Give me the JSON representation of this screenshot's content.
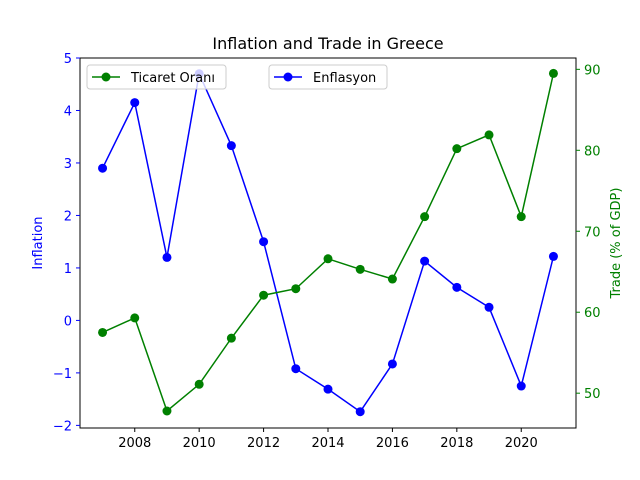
{
  "chart_data": {
    "type": "line",
    "title": "Inflation and Trade in Greece",
    "x": [
      2007,
      2008,
      2009,
      2010,
      2011,
      2012,
      2013,
      2014,
      2015,
      2016,
      2017,
      2018,
      2019,
      2020,
      2021
    ],
    "x_ticks": [
      2008,
      2010,
      2012,
      2014,
      2016,
      2018,
      2020
    ],
    "xlim": [
      2006.3,
      2021.7
    ],
    "left_axis": {
      "label": "Inflation",
      "color": "#0000ff",
      "ylim": [
        -2.05,
        5.0
      ],
      "ticks": [
        5,
        4,
        3,
        2,
        1,
        0,
        -1,
        -2
      ],
      "tick_labels": [
        "5",
        "4",
        "3",
        "2",
        "1",
        "0",
        "−1",
        "−2"
      ]
    },
    "right_axis": {
      "label": "Trade (% of GDP)",
      "color": "#008000",
      "ylim": [
        45.7,
        91.4
      ],
      "ticks": [
        90,
        80,
        70,
        60,
        50
      ],
      "tick_labels": [
        "90",
        "80",
        "70",
        "60",
        "50"
      ]
    },
    "series": [
      {
        "name": "Enflasyon",
        "axis": "left",
        "color": "#0000ff",
        "values": [
          2.9,
          4.15,
          1.2,
          4.7,
          3.33,
          1.5,
          -0.92,
          -1.31,
          -1.74,
          -0.83,
          1.13,
          0.63,
          0.25,
          -1.25,
          1.22
        ]
      },
      {
        "name": "Ticaret Oranı",
        "axis": "right",
        "color": "#008000",
        "values": [
          57.5,
          59.3,
          47.8,
          51.1,
          56.8,
          62.1,
          62.9,
          66.6,
          65.3,
          64.1,
          71.8,
          80.2,
          81.9,
          71.8,
          89.5
        ]
      }
    ],
    "legend": [
      {
        "position": "upper-left",
        "label": "Ticaret Oranı",
        "color": "#008000"
      },
      {
        "position": "upper-center",
        "label": "Enflasyon",
        "color": "#0000ff"
      }
    ],
    "grid": false
  }
}
